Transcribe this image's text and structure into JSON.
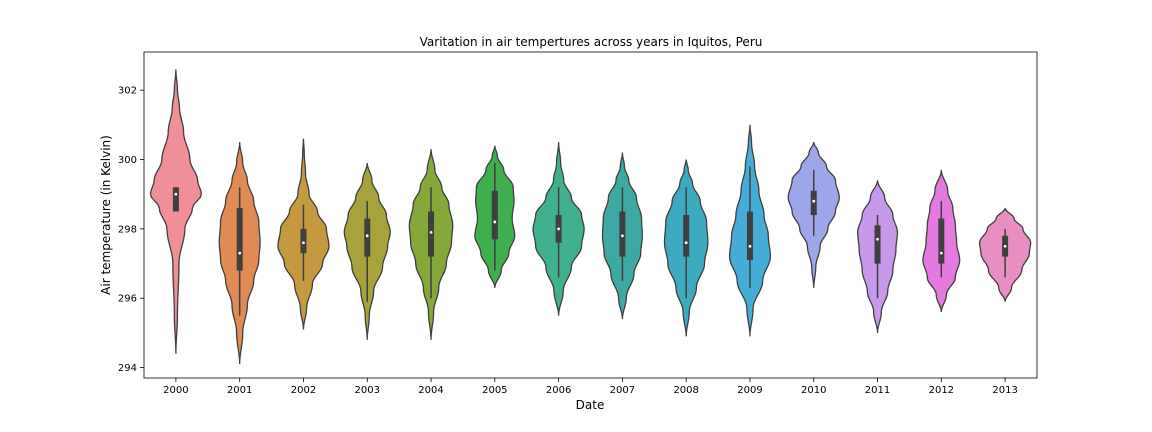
{
  "chart_data": {
    "type": "violin",
    "title": "Varitation in air tempertures across years in Iquitos, Peru",
    "xlabel": "Date",
    "ylabel": "Air temperature (in Kelvin)",
    "ylim": [
      293.7,
      303.1
    ],
    "yticks": [
      294,
      296,
      298,
      300,
      302
    ],
    "grid": false,
    "categories": [
      "2000",
      "2001",
      "2002",
      "2003",
      "2004",
      "2005",
      "2006",
      "2007",
      "2008",
      "2009",
      "2010",
      "2011",
      "2012",
      "2013"
    ],
    "colors": [
      "#f08f97",
      "#e08a56",
      "#c5993f",
      "#a7a23b",
      "#86a83b",
      "#3fae4d",
      "#40b08f",
      "#3ea9a3",
      "#3eaac0",
      "#46acd8",
      "#9da6ea",
      "#c898ea",
      "#e47ae0",
      "#e98ec2"
    ],
    "series": [
      {
        "name": "2000",
        "min": 294.4,
        "max": 302.6,
        "q1": 298.5,
        "median": 299.0,
        "q3": 299.2,
        "whisker_low": 298.5,
        "whisker_high": 299.2,
        "profile": [
          [
            294.4,
            0
          ],
          [
            295.5,
            0.06
          ],
          [
            297.0,
            0.12
          ],
          [
            298.0,
            0.35
          ],
          [
            298.6,
            0.65
          ],
          [
            299.0,
            1.0
          ],
          [
            299.4,
            0.85
          ],
          [
            300.0,
            0.55
          ],
          [
            300.8,
            0.3
          ],
          [
            301.5,
            0.14
          ],
          [
            302.0,
            0.06
          ],
          [
            302.6,
            0
          ]
        ]
      },
      {
        "name": "2001",
        "min": 294.1,
        "max": 300.5,
        "q1": 296.8,
        "median": 297.3,
        "q3": 298.6,
        "whisker_low": 295.5,
        "whisker_high": 299.2,
        "profile": [
          [
            294.1,
            0
          ],
          [
            295.0,
            0.12
          ],
          [
            295.8,
            0.3
          ],
          [
            296.5,
            0.55
          ],
          [
            297.1,
            0.75
          ],
          [
            297.6,
            0.8
          ],
          [
            298.2,
            0.75
          ],
          [
            298.8,
            0.55
          ],
          [
            299.4,
            0.3
          ],
          [
            299.9,
            0.12
          ],
          [
            300.5,
            0
          ]
        ]
      },
      {
        "name": "2002",
        "min": 295.1,
        "max": 300.6,
        "q1": 297.3,
        "median": 297.6,
        "q3": 298.0,
        "whisker_low": 296.5,
        "whisker_high": 298.7,
        "profile": [
          [
            295.1,
            0
          ],
          [
            295.7,
            0.12
          ],
          [
            296.4,
            0.35
          ],
          [
            297.0,
            0.75
          ],
          [
            297.5,
            1.0
          ],
          [
            298.0,
            0.9
          ],
          [
            298.5,
            0.55
          ],
          [
            299.0,
            0.22
          ],
          [
            299.6,
            0.08
          ],
          [
            300.2,
            0.03
          ],
          [
            300.6,
            0
          ]
        ]
      },
      {
        "name": "2003",
        "min": 294.8,
        "max": 299.9,
        "q1": 297.2,
        "median": 297.8,
        "q3": 298.3,
        "whisker_low": 295.9,
        "whisker_high": 298.8,
        "profile": [
          [
            294.8,
            0
          ],
          [
            295.5,
            0.08
          ],
          [
            296.2,
            0.25
          ],
          [
            296.9,
            0.6
          ],
          [
            297.5,
            0.8
          ],
          [
            297.9,
            0.9
          ],
          [
            298.4,
            0.75
          ],
          [
            298.9,
            0.45
          ],
          [
            299.4,
            0.18
          ],
          [
            299.9,
            0
          ]
        ]
      },
      {
        "name": "2004",
        "min": 294.8,
        "max": 300.3,
        "q1": 297.2,
        "median": 297.9,
        "q3": 298.5,
        "whisker_low": 296.0,
        "whisker_high": 299.2,
        "profile": [
          [
            294.8,
            0
          ],
          [
            295.6,
            0.1
          ],
          [
            296.3,
            0.3
          ],
          [
            297.0,
            0.6
          ],
          [
            297.6,
            0.8
          ],
          [
            298.1,
            0.85
          ],
          [
            298.7,
            0.7
          ],
          [
            299.2,
            0.42
          ],
          [
            299.7,
            0.15
          ],
          [
            300.3,
            0
          ]
        ]
      },
      {
        "name": "2005",
        "min": 296.3,
        "max": 300.4,
        "q1": 297.7,
        "median": 298.2,
        "q3": 299.1,
        "whisker_low": 296.8,
        "whisker_high": 299.9,
        "profile": [
          [
            296.3,
            0
          ],
          [
            296.8,
            0.25
          ],
          [
            297.3,
            0.55
          ],
          [
            297.8,
            0.78
          ],
          [
            298.3,
            0.68
          ],
          [
            298.8,
            0.75
          ],
          [
            299.2,
            0.72
          ],
          [
            299.7,
            0.35
          ],
          [
            300.1,
            0.1
          ],
          [
            300.4,
            0
          ]
        ]
      },
      {
        "name": "2006",
        "min": 295.5,
        "max": 300.5,
        "q1": 297.6,
        "median": 298.0,
        "q3": 298.4,
        "whisker_low": 296.6,
        "whisker_high": 299.2,
        "profile": [
          [
            295.5,
            0
          ],
          [
            296.2,
            0.18
          ],
          [
            296.9,
            0.5
          ],
          [
            297.5,
            0.9
          ],
          [
            298.0,
            1.0
          ],
          [
            298.4,
            0.9
          ],
          [
            298.9,
            0.5
          ],
          [
            299.4,
            0.2
          ],
          [
            299.9,
            0.08
          ],
          [
            300.5,
            0
          ]
        ]
      },
      {
        "name": "2007",
        "min": 295.4,
        "max": 300.2,
        "q1": 297.2,
        "median": 297.8,
        "q3": 298.5,
        "whisker_low": 296.5,
        "whisker_high": 299.2,
        "profile": [
          [
            295.4,
            0
          ],
          [
            296.0,
            0.15
          ],
          [
            296.7,
            0.45
          ],
          [
            297.3,
            0.72
          ],
          [
            297.8,
            0.78
          ],
          [
            298.3,
            0.75
          ],
          [
            298.9,
            0.55
          ],
          [
            299.4,
            0.25
          ],
          [
            299.8,
            0.08
          ],
          [
            300.2,
            0
          ]
        ]
      },
      {
        "name": "2008",
        "min": 294.9,
        "max": 300.0,
        "q1": 297.2,
        "median": 297.6,
        "q3": 298.4,
        "whisker_low": 296.0,
        "whisker_high": 299.2,
        "profile": [
          [
            294.9,
            0
          ],
          [
            295.6,
            0.12
          ],
          [
            296.3,
            0.4
          ],
          [
            297.0,
            0.72
          ],
          [
            297.6,
            0.85
          ],
          [
            298.2,
            0.8
          ],
          [
            298.8,
            0.55
          ],
          [
            299.3,
            0.25
          ],
          [
            299.7,
            0.08
          ],
          [
            300.0,
            0
          ]
        ]
      },
      {
        "name": "2009",
        "min": 294.9,
        "max": 301.0,
        "q1": 297.1,
        "median": 297.5,
        "q3": 298.5,
        "whisker_low": 296.3,
        "whisker_high": 299.8,
        "profile": [
          [
            294.9,
            0
          ],
          [
            295.7,
            0.12
          ],
          [
            296.5,
            0.5
          ],
          [
            297.2,
            0.8
          ],
          [
            297.8,
            0.72
          ],
          [
            298.4,
            0.55
          ],
          [
            299.1,
            0.35
          ],
          [
            299.8,
            0.18
          ],
          [
            300.5,
            0.06
          ],
          [
            301.0,
            0
          ]
        ]
      },
      {
        "name": "2010",
        "min": 296.3,
        "max": 300.5,
        "q1": 298.4,
        "median": 298.8,
        "q3": 299.1,
        "whisker_low": 297.8,
        "whisker_high": 299.7,
        "profile": [
          [
            296.3,
            0
          ],
          [
            296.9,
            0.08
          ],
          [
            297.5,
            0.25
          ],
          [
            298.0,
            0.55
          ],
          [
            298.5,
            0.85
          ],
          [
            298.9,
            1.0
          ],
          [
            299.4,
            0.85
          ],
          [
            299.8,
            0.5
          ],
          [
            300.2,
            0.18
          ],
          [
            300.5,
            0
          ]
        ]
      },
      {
        "name": "2011",
        "min": 295.0,
        "max": 299.4,
        "q1": 297.0,
        "median": 297.7,
        "q3": 298.1,
        "whisker_low": 296.0,
        "whisker_high": 298.4,
        "profile": [
          [
            295.0,
            0
          ],
          [
            295.6,
            0.15
          ],
          [
            296.2,
            0.4
          ],
          [
            296.8,
            0.6
          ],
          [
            297.4,
            0.72
          ],
          [
            297.9,
            0.78
          ],
          [
            298.4,
            0.6
          ],
          [
            298.9,
            0.28
          ],
          [
            299.4,
            0
          ]
        ]
      },
      {
        "name": "2012",
        "min": 295.6,
        "max": 299.7,
        "q1": 297.0,
        "median": 297.3,
        "q3": 298.3,
        "whisker_low": 296.6,
        "whisker_high": 298.8,
        "profile": [
          [
            295.6,
            0
          ],
          [
            296.1,
            0.2
          ],
          [
            296.6,
            0.55
          ],
          [
            297.1,
            0.72
          ],
          [
            297.6,
            0.6
          ],
          [
            298.1,
            0.55
          ],
          [
            298.6,
            0.45
          ],
          [
            299.1,
            0.25
          ],
          [
            299.7,
            0
          ]
        ]
      },
      {
        "name": "2013",
        "min": 295.9,
        "max": 298.6,
        "q1": 297.2,
        "median": 297.5,
        "q3": 297.8,
        "whisker_low": 296.6,
        "whisker_high": 298.0,
        "profile": [
          [
            295.9,
            0
          ],
          [
            296.3,
            0.25
          ],
          [
            296.8,
            0.65
          ],
          [
            297.3,
            0.95
          ],
          [
            297.6,
            1.0
          ],
          [
            298.0,
            0.7
          ],
          [
            298.3,
            0.35
          ],
          [
            298.6,
            0
          ]
        ]
      }
    ]
  }
}
